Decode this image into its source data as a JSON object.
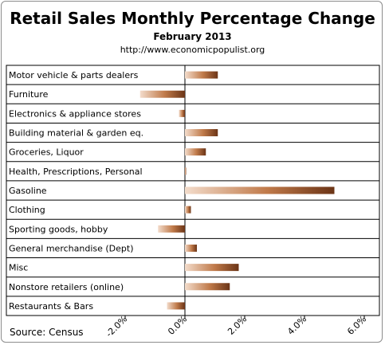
{
  "chart_data": {
    "type": "bar",
    "orientation": "horizontal",
    "title": "Retail Sales Monthly  Percentage Change",
    "subtitle": "February 2013",
    "url": "http://www.economicpopulist.org",
    "source": "Source:  Census",
    "categories": [
      "Motor vehicle & parts dealers",
      "Furniture",
      "Electronics & appliance stores",
      "Building material & garden eq.",
      "Groceries, Liquor",
      "Health, Prescriptions, Personal",
      "Gasoline",
      "Clothing",
      "Sporting goods, hobby",
      "General merchandise (Dept)",
      "Misc",
      "Nonstore retailers (online)",
      "Restaurants & Bars"
    ],
    "values": [
      1.1,
      -1.5,
      -0.2,
      1.1,
      0.7,
      0.0,
      5.0,
      0.2,
      -0.9,
      0.4,
      1.8,
      1.5,
      -0.6
    ],
    "xlim": [
      -2.0,
      6.0
    ],
    "xticks": [
      "-2.0%",
      "0.0%",
      "2.0%",
      "4.0%",
      "6.0%"
    ],
    "grid": false,
    "colors": {
      "bar_dark": "#6b3416",
      "bar_mid": "#c07a4a",
      "bar_light": "#f3dccb"
    }
  }
}
